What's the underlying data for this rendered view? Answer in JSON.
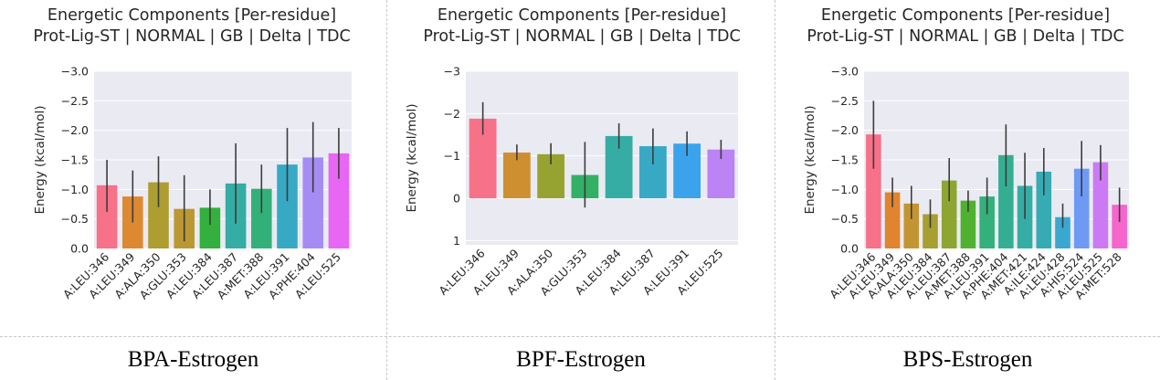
{
  "chart_data": [
    {
      "type": "bar",
      "title": "Energetic Components [Per-residue]",
      "subtitle": "Prot-Lig-ST | NORMAL | GB | Delta | TDC",
      "ylabel": "Energy (kcal/mol)",
      "xlabel": "",
      "ylim": [
        0.0,
        -3.0
      ],
      "yticks": [
        "0.0",
        "−0.5",
        "−1.0",
        "−1.5",
        "−2.0",
        "−2.5",
        "−3.0"
      ],
      "ytick_values": [
        0,
        -0.5,
        -1.0,
        -1.5,
        -2.0,
        -2.5,
        -3.0
      ],
      "grid": true,
      "categories": [
        "A:LEU:346",
        "A:LEU:349",
        "A:ALA:350",
        "A:GLU:353",
        "A:LEU:384",
        "A:LEU:387",
        "A:MET:388",
        "A:LEU:391",
        "A:PHE:404",
        "A:LEU:525"
      ],
      "values": [
        -1.07,
        -0.88,
        -1.12,
        -0.67,
        -0.69,
        -1.1,
        -1.01,
        -1.42,
        -1.54,
        -1.61
      ],
      "err_low": [
        -0.62,
        -0.44,
        -0.7,
        -0.12,
        -0.4,
        -0.42,
        -0.6,
        -0.8,
        -0.95,
        -1.18
      ],
      "err_high": [
        -1.5,
        -1.32,
        -1.56,
        -1.24,
        -1.0,
        -1.78,
        -1.42,
        -2.04,
        -2.14,
        -2.04
      ],
      "colors": [
        "#f77189",
        "#dc8932",
        "#ae9d31",
        "#bb9832",
        "#33b03d",
        "#35aca4",
        "#33b07a",
        "#38a9c5",
        "#a48cf4",
        "#e866f4"
      ],
      "caption": "BPA-Estrogen"
    },
    {
      "type": "bar",
      "title": "Energetic Components [Per-residue]",
      "subtitle": "Prot-Lig-ST | NORMAL | GB | Delta | TDC",
      "ylabel": "Energy (kcal/mol)",
      "xlabel": "",
      "ylim": [
        1.1,
        -3.0
      ],
      "yticks": [
        "1",
        "0",
        "−1",
        "−2",
        "−3"
      ],
      "ytick_values": [
        1,
        0,
        -1,
        -2,
        -3
      ],
      "grid": true,
      "categories": [
        "A:LEU:346",
        "A:LEU:349",
        "A:ALA:350",
        "A:GLU:353",
        "A:LEU:384",
        "A:LEU:387",
        "A:LEU:391",
        "A:LEU:525"
      ],
      "values": [
        -1.88,
        -1.08,
        -1.04,
        -0.55,
        -1.47,
        -1.23,
        -1.29,
        -1.15
      ],
      "err_low": [
        -1.5,
        -0.9,
        -0.8,
        0.22,
        -1.17,
        -0.8,
        -1.0,
        -0.93
      ],
      "err_high": [
        -2.27,
        -1.27,
        -1.3,
        -1.33,
        -1.77,
        -1.65,
        -1.58,
        -1.38
      ],
      "colors": [
        "#f77189",
        "#ce8f31",
        "#96a331",
        "#32b166",
        "#36ada4",
        "#38a9c5",
        "#3ba3ec",
        "#bb83f4"
      ],
      "caption": "BPF-Estrogen"
    },
    {
      "type": "bar",
      "title": "Energetic Components [Per-residue]",
      "subtitle": "Prot-Lig-ST | NORMAL | GB | Delta | TDC",
      "ylabel": "Energy (kcal/mol)",
      "xlabel": "",
      "ylim": [
        0.0,
        -3.0
      ],
      "yticks": [
        "0.0",
        "−0.5",
        "−1.0",
        "−1.5",
        "−2.0",
        "−2.5",
        "−3.0"
      ],
      "ytick_values": [
        0,
        -0.5,
        -1.0,
        -1.5,
        -2.0,
        -2.5,
        -3.0
      ],
      "grid": true,
      "categories": [
        "A:LEU:346",
        "A:LEU:349",
        "A:ALA:350",
        "A:LEU:384",
        "A:LEU:387",
        "A:MET:388",
        "A:LEU:391",
        "A:PHE:404",
        "A:MET:421",
        "A:ILE:424",
        "A:LEU:428",
        "A:HIS:524",
        "A:LEU:525",
        "A:MET:528"
      ],
      "values": [
        -1.93,
        -0.95,
        -0.76,
        -0.58,
        -1.15,
        -0.81,
        -0.88,
        -1.58,
        -1.06,
        -1.3,
        -0.53,
        -1.35,
        -1.46,
        -0.74
      ],
      "err_low": [
        -1.35,
        -0.7,
        -0.5,
        -0.35,
        -0.8,
        -0.62,
        -0.58,
        -1.05,
        -0.5,
        -0.9,
        -0.35,
        -0.88,
        -1.15,
        -0.45
      ],
      "err_high": [
        -2.5,
        -1.2,
        -1.06,
        -0.83,
        -1.53,
        -0.98,
        -1.2,
        -2.1,
        -1.62,
        -1.7,
        -0.76,
        -1.82,
        -1.75,
        -1.03
      ],
      "colors": [
        "#f77189",
        "#e1832f",
        "#c39532",
        "#a79f31",
        "#8ea531",
        "#50b131",
        "#33b07b",
        "#34ae93",
        "#36ada4",
        "#37abb4",
        "#39a7d0",
        "#6e9af4",
        "#cc7af4",
        "#f565cc"
      ],
      "caption": "BPS-Estrogen"
    }
  ]
}
